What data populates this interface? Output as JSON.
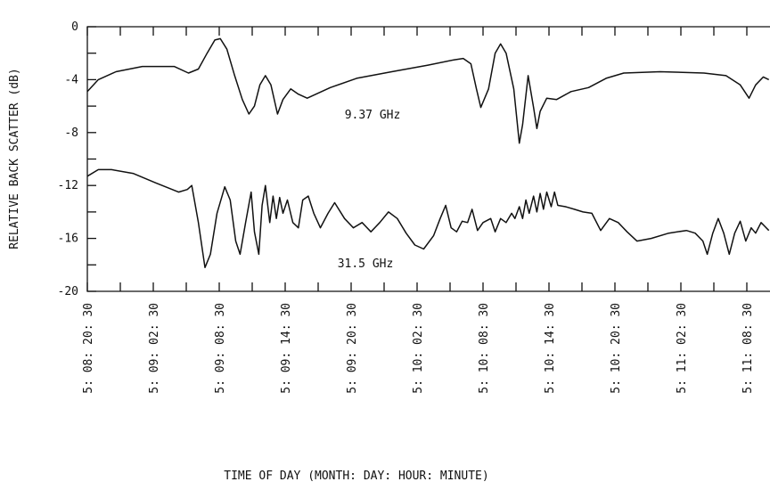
{
  "chart_data": {
    "type": "line",
    "xlabel": "TIME OF DAY (MONTH: DAY: HOUR: MINUTE)",
    "ylabel": "RELATIVE BACK SCATTER (dB)",
    "xlim": [
      0,
      62
    ],
    "ylim": [
      -20,
      0
    ],
    "xticks": [
      {
        "value": 0,
        "label": "5: 08: 20: 30"
      },
      {
        "value": 6,
        "label": "5: 09: 02: 30"
      },
      {
        "value": 12,
        "label": "5: 09: 08: 30"
      },
      {
        "value": 18,
        "label": "5: 09: 14: 30"
      },
      {
        "value": 24,
        "label": "5: 09: 20: 30"
      },
      {
        "value": 30,
        "label": "5: 10: 02: 30"
      },
      {
        "value": 36,
        "label": "5: 10: 08: 30"
      },
      {
        "value": 42,
        "label": "5: 10: 14: 30"
      },
      {
        "value": 48,
        "label": "5: 10: 20: 30"
      },
      {
        "value": 54,
        "label": "5: 11: 02: 30"
      },
      {
        "value": 60,
        "label": "5: 11: 08: 30"
      }
    ],
    "xminorticks": [
      3,
      9,
      15,
      21,
      27,
      33,
      39,
      45,
      51,
      57
    ],
    "yticks": [
      0,
      -4,
      -8,
      -12,
      -16,
      -20
    ],
    "yminorticks": [
      -2,
      -6,
      -10,
      -14,
      -18
    ],
    "grid": false,
    "series": [
      {
        "name": "9.37 GHz",
        "color": "#111111",
        "x": [
          0,
          1.0,
          2.6,
          5.0,
          7.9,
          9.2,
          10.1,
          10.9,
          11.6,
          12.1,
          12.7,
          13.4,
          14.1,
          14.7,
          15.2,
          15.7,
          16.2,
          16.7,
          17.3,
          17.8,
          18.5,
          19.2,
          20.0,
          22.1,
          24.5,
          27.7,
          31.0,
          33.4,
          34.2,
          34.9,
          35.4,
          35.8,
          36.5,
          37.1,
          37.6,
          38.1,
          38.8,
          39.3,
          39.6,
          40.1,
          40.6,
          40.9,
          41.2,
          41.8,
          42.7,
          44.0,
          45.6,
          47.2,
          48.8,
          52.1,
          56.1,
          58.1,
          59.4,
          60.2,
          60.8,
          61.5,
          62.0
        ],
        "values": [
          -4.9,
          -4.0,
          -3.4,
          -3.0,
          -3.0,
          -3.5,
          -3.2,
          -2.0,
          -1.0,
          -0.9,
          -1.7,
          -3.7,
          -5.5,
          -6.6,
          -6.0,
          -4.4,
          -3.7,
          -4.4,
          -6.6,
          -5.5,
          -4.7,
          -5.1,
          -5.4,
          -4.6,
          -3.9,
          -3.4,
          -2.9,
          -2.5,
          -2.4,
          -2.8,
          -4.7,
          -6.1,
          -4.7,
          -2.0,
          -1.3,
          -2.0,
          -4.7,
          -8.8,
          -7.4,
          -3.7,
          -6.1,
          -7.7,
          -6.4,
          -5.4,
          -5.5,
          -4.9,
          -4.6,
          -3.9,
          -3.5,
          -3.4,
          -3.5,
          -3.7,
          -4.4,
          -5.4,
          -4.4,
          -3.8,
          -4.0
        ]
      },
      {
        "name": "31.5 GHz",
        "color": "#111111",
        "x": [
          0,
          1.0,
          2.2,
          4.2,
          6.2,
          8.3,
          9.1,
          9.5,
          10.1,
          10.7,
          11.2,
          11.8,
          12.5,
          13.0,
          13.5,
          13.9,
          14.4,
          14.9,
          15.2,
          15.6,
          15.9,
          16.2,
          16.6,
          16.9,
          17.2,
          17.5,
          17.8,
          18.2,
          18.7,
          19.2,
          19.6,
          20.1,
          20.6,
          21.2,
          21.9,
          22.5,
          23.4,
          24.2,
          25.0,
          25.8,
          26.6,
          27.4,
          28.2,
          29.0,
          29.8,
          30.6,
          31.5,
          32.1,
          32.6,
          33.1,
          33.6,
          34.1,
          34.6,
          35.0,
          35.5,
          36.0,
          36.7,
          37.1,
          37.6,
          38.1,
          38.6,
          38.9,
          39.3,
          39.6,
          39.9,
          40.2,
          40.6,
          40.9,
          41.2,
          41.5,
          41.8,
          42.2,
          42.5,
          42.8,
          43.5,
          44.3,
          45.1,
          45.9,
          46.7,
          47.5,
          48.3,
          49.1,
          50.0,
          51.3,
          52.9,
          54.5,
          55.3,
          56.0,
          56.4,
          56.9,
          57.4,
          57.9,
          58.4,
          58.9,
          59.4,
          59.9,
          60.4,
          60.8,
          61.3,
          62.0
        ],
        "values": [
          -11.3,
          -10.8,
          -10.8,
          -11.1,
          -11.8,
          -12.5,
          -12.3,
          -12.0,
          -14.8,
          -18.2,
          -17.2,
          -14.1,
          -12.1,
          -13.1,
          -16.2,
          -17.2,
          -14.8,
          -12.5,
          -15.5,
          -17.2,
          -13.5,
          -12.0,
          -14.8,
          -12.8,
          -14.5,
          -12.9,
          -14.1,
          -13.1,
          -14.8,
          -15.2,
          -13.1,
          -12.8,
          -14.1,
          -15.2,
          -14.1,
          -13.3,
          -14.5,
          -15.2,
          -14.8,
          -15.5,
          -14.8,
          -14.0,
          -14.5,
          -15.6,
          -16.5,
          -16.8,
          -15.8,
          -14.5,
          -13.5,
          -15.2,
          -15.5,
          -14.7,
          -14.8,
          -13.8,
          -15.4,
          -14.8,
          -14.5,
          -15.5,
          -14.5,
          -14.8,
          -14.1,
          -14.5,
          -13.6,
          -14.5,
          -13.1,
          -14.1,
          -12.8,
          -14.0,
          -12.6,
          -13.8,
          -12.5,
          -13.6,
          -12.5,
          -13.5,
          -13.6,
          -13.8,
          -14.0,
          -14.1,
          -15.4,
          -14.5,
          -14.8,
          -15.5,
          -16.2,
          -16.0,
          -15.6,
          -15.4,
          -15.6,
          -16.2,
          -17.2,
          -15.6,
          -14.5,
          -15.6,
          -17.2,
          -15.6,
          -14.7,
          -16.2,
          -15.2,
          -15.6,
          -14.8,
          -15.4
        ]
      }
    ]
  }
}
